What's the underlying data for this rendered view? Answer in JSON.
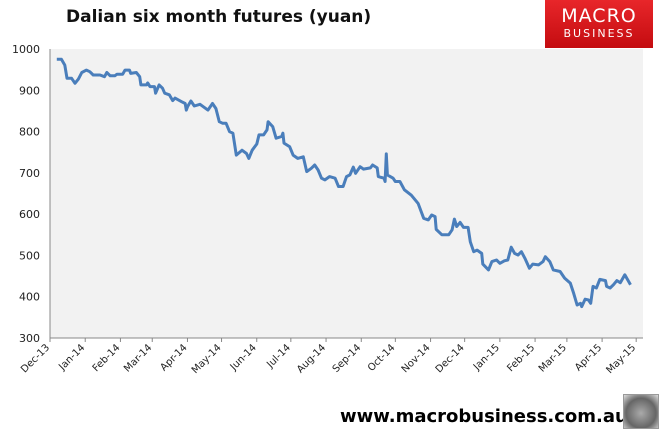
{
  "logo": {
    "line1": "MACRO",
    "line2": "BUSINESS",
    "color": "#d9161b"
  },
  "footer": {
    "url": "www.macrobusiness.com.au"
  },
  "chart_data": {
    "type": "line",
    "title": "Dalian six month futures (yuan)",
    "xlabel": "",
    "ylabel": "",
    "ylim": [
      300,
      1000
    ],
    "yticks": [
      1000,
      900,
      800,
      700,
      600,
      500,
      400,
      300
    ],
    "xlim": [
      "2013-12-01",
      "2015-05-07"
    ],
    "xticks": [
      {
        "label": "Dec-13",
        "date": "2013-12-01"
      },
      {
        "label": "Jan-14",
        "date": "2014-01-01"
      },
      {
        "label": "Feb-14",
        "date": "2014-02-01"
      },
      {
        "label": "Mar-14",
        "date": "2014-03-01"
      },
      {
        "label": "Apr-14",
        "date": "2014-04-01"
      },
      {
        "label": "May-14",
        "date": "2014-05-01"
      },
      {
        "label": "Jun-14",
        "date": "2014-06-01"
      },
      {
        "label": "Jul-14",
        "date": "2014-07-01"
      },
      {
        "label": "Aug-14",
        "date": "2014-08-01"
      },
      {
        "label": "Sep-14",
        "date": "2014-09-01"
      },
      {
        "label": "Oct-14",
        "date": "2014-10-01"
      },
      {
        "label": "Nov-14",
        "date": "2014-11-01"
      },
      {
        "label": "Dec-14",
        "date": "2014-12-01"
      },
      {
        "label": "Jan-15",
        "date": "2015-01-01"
      },
      {
        "label": "Feb-15",
        "date": "2015-02-01"
      },
      {
        "label": "Mar-15",
        "date": "2015-03-01"
      },
      {
        "label": "Apr-15",
        "date": "2015-04-01"
      },
      {
        "label": "May-15",
        "date": "2015-05-01"
      }
    ],
    "grid": false,
    "line_color": "#4a7ebb",
    "plot_background": "#f2f2f2",
    "x": [
      "2013-12-07",
      "2013-12-11",
      "2013-12-14",
      "2013-12-16",
      "2013-12-20",
      "2013-12-23",
      "2013-12-26",
      "2013-12-29",
      "2014-01-02",
      "2014-01-05",
      "2014-01-08",
      "2014-01-14",
      "2014-01-18",
      "2014-01-20",
      "2014-01-23",
      "2014-01-27",
      "2014-01-29",
      "2014-02-03",
      "2014-02-05",
      "2014-02-09",
      "2014-02-10",
      "2014-02-15",
      "2014-02-18",
      "2014-02-19",
      "2014-02-24",
      "2014-02-25",
      "2014-02-27",
      "2014-03-03",
      "2014-03-04",
      "2014-03-07",
      "2014-03-10",
      "2014-03-12",
      "2014-03-16",
      "2014-03-19",
      "2014-03-21",
      "2014-03-27",
      "2014-03-30",
      "2014-03-31",
      "2014-04-01",
      "2014-04-04",
      "2014-04-07",
      "2014-04-12",
      "2014-04-19",
      "2014-04-23",
      "2014-04-26",
      "2014-04-29",
      "2014-05-02",
      "2014-05-05",
      "2014-05-08",
      "2014-05-11",
      "2014-05-14",
      "2014-05-19",
      "2014-05-23",
      "2014-05-25",
      "2014-05-28",
      "2014-06-01",
      "2014-06-03",
      "2014-06-07",
      "2014-06-10",
      "2014-06-11",
      "2014-06-15",
      "2014-06-18",
      "2014-06-23",
      "2014-06-24",
      "2014-06-25",
      "2014-06-30",
      "2014-07-03",
      "2014-07-07",
      "2014-07-12",
      "2014-07-15",
      "2014-07-19",
      "2014-07-22",
      "2014-07-25",
      "2014-07-28",
      "2014-07-31",
      "2014-08-04",
      "2014-08-09",
      "2014-08-12",
      "2014-08-16",
      "2014-08-19",
      "2014-08-22",
      "2014-08-25",
      "2014-08-27",
      "2014-08-31",
      "2014-09-03",
      "2014-09-09",
      "2014-09-11",
      "2014-09-15",
      "2014-09-16",
      "2014-09-21",
      "2014-09-22",
      "2014-09-23",
      "2014-09-24",
      "2014-09-29",
      "2014-10-01",
      "2014-10-05",
      "2014-10-09",
      "2014-10-15",
      "2014-10-21",
      "2014-10-26",
      "2014-10-30",
      "2014-11-02",
      "2014-11-05",
      "2014-11-06",
      "2014-11-11",
      "2014-11-17",
      "2014-11-20",
      "2014-11-22",
      "2014-11-24",
      "2014-11-27",
      "2014-11-30",
      "2014-12-04",
      "2014-12-06",
      "2014-12-09",
      "2014-12-12",
      "2014-12-16",
      "2014-12-17",
      "2014-12-22",
      "2014-12-25",
      "2014-12-29",
      "2015-01-01",
      "2015-01-05",
      "2015-01-08",
      "2015-01-11",
      "2015-01-14",
      "2015-01-17",
      "2015-01-20",
      "2015-01-23",
      "2015-01-27",
      "2015-01-30",
      "2015-02-04",
      "2015-02-08",
      "2015-02-10",
      "2015-02-14",
      "2015-02-17",
      "2015-02-23",
      "2015-02-27",
      "2015-03-04",
      "2015-03-07",
      "2015-03-10",
      "2015-03-13",
      "2015-03-14",
      "2015-03-17",
      "2015-03-20",
      "2015-03-22",
      "2015-03-24",
      "2015-03-27",
      "2015-03-30",
      "2015-04-04",
      "2015-04-05",
      "2015-04-08",
      "2015-04-11",
      "2015-04-14",
      "2015-04-17",
      "2015-04-21",
      "2015-04-26"
    ],
    "y": [
      975,
      975,
      961,
      929,
      929,
      917,
      927,
      943,
      949,
      945,
      937,
      937,
      933,
      943,
      935,
      935,
      939,
      939,
      949,
      949,
      941,
      943,
      933,
      913,
      913,
      918,
      909,
      909,
      893,
      913,
      905,
      893,
      889,
      875,
      881,
      872,
      868,
      852,
      860,
      874,
      862,
      866,
      852,
      868,
      856,
      824,
      820,
      820,
      800,
      796,
      743,
      755,
      747,
      735,
      755,
      770,
      792,
      792,
      804,
      824,
      812,
      784,
      788,
      796,
      772,
      763,
      743,
      735,
      739,
      703,
      711,
      719,
      707,
      687,
      683,
      691,
      687,
      667,
      667,
      691,
      695,
      714,
      699,
      715,
      709,
      712,
      719,
      712,
      691,
      687,
      679,
      746,
      695,
      687,
      679,
      679,
      659,
      646,
      626,
      590,
      586,
      598,
      594,
      563,
      550,
      550,
      562,
      588,
      570,
      580,
      568,
      568,
      533,
      509,
      513,
      505,
      479,
      465,
      485,
      489,
      481,
      487,
      489,
      520,
      505,
      501,
      509,
      493,
      469,
      479,
      477,
      485,
      497,
      485,
      465,
      461,
      445,
      433,
      408,
      380,
      384,
      376,
      394,
      392,
      384,
      425,
      421,
      442,
      439,
      425,
      421,
      429,
      439,
      434,
      453,
      429
    ]
  }
}
